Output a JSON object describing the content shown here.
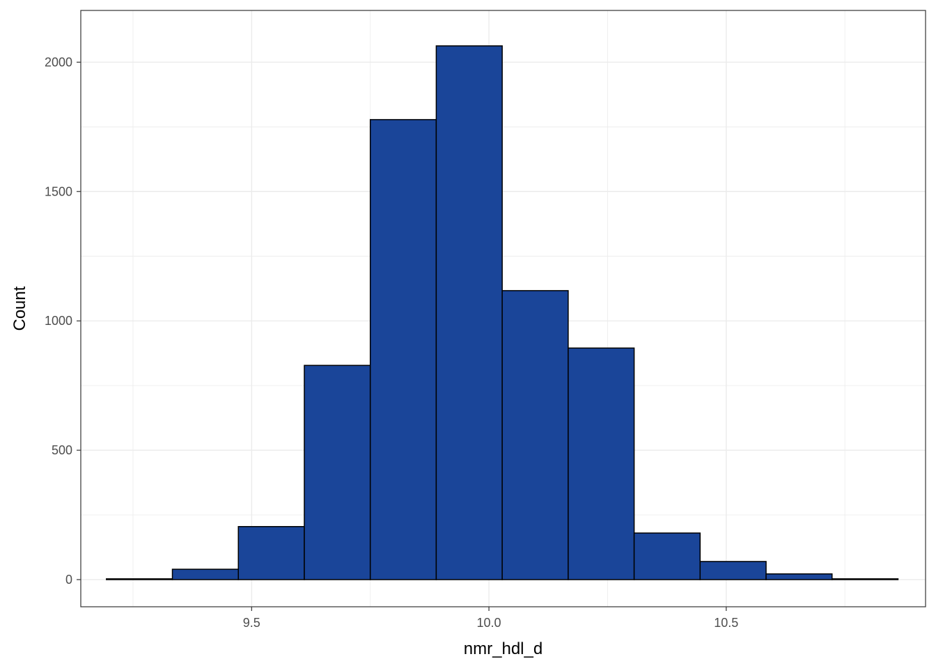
{
  "chart_data": {
    "type": "bar",
    "subtype": "histogram",
    "xlabel": "nmr_hdl_d",
    "ylabel": "Count",
    "xlim": [
      9.14,
      10.92
    ],
    "ylim": [
      -105,
      2200
    ],
    "x_ticks": [
      9.5,
      10.0,
      10.5
    ],
    "x_tick_labels": [
      "9.5",
      "10.0",
      "10.5"
    ],
    "y_ticks": [
      0,
      500,
      1000,
      1500,
      2000
    ],
    "y_tick_labels": [
      "0",
      "500",
      "1000",
      "1500",
      "2000"
    ],
    "grid": true,
    "bin_edges": [
      9.194,
      9.333,
      9.472,
      9.611,
      9.75,
      9.889,
      10.028,
      10.167,
      10.306,
      10.445,
      10.584,
      10.723,
      10.862
    ],
    "values": [
      3,
      40,
      205,
      828,
      1778,
      2063,
      1117,
      895,
      180,
      70,
      22,
      3
    ],
    "bar_fill": "#1a4599",
    "bar_stroke": "#000000",
    "panel_border": "#333333",
    "grid_color": "#ebebeb"
  }
}
